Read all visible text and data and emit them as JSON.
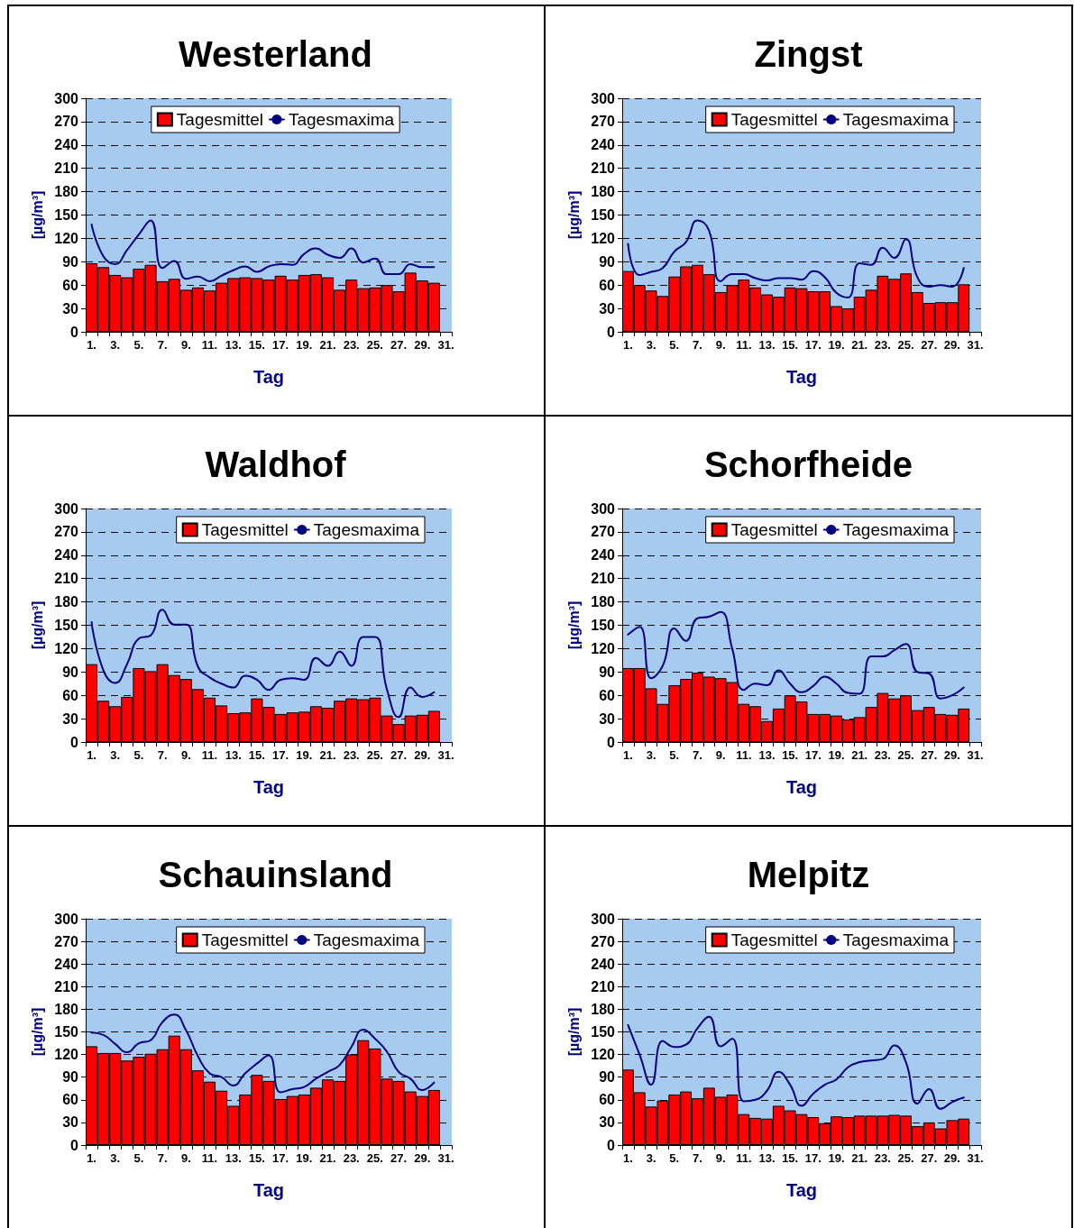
{
  "chart_data": [
    {
      "type": "bar",
      "title": "Westerland",
      "xlabel": "Tag",
      "ylabel": "[µg/m³]",
      "legend": "top",
      "grid": "y",
      "line_style": "solid",
      "marker": "none",
      "ylim": [
        0,
        300
      ],
      "yticks": [
        0,
        30,
        60,
        90,
        120,
        150,
        180,
        210,
        240,
        270,
        300
      ],
      "categories": [
        "1.",
        null,
        "3.",
        null,
        "5.",
        null,
        "7.",
        null,
        "9.",
        null,
        "11.",
        null,
        "13.",
        null,
        "15.",
        null,
        "17.",
        null,
        "19.",
        null,
        "21.",
        null,
        "23.",
        null,
        "25.",
        null,
        "27.",
        null,
        "29.",
        null,
        "31."
      ],
      "series": [
        {
          "name": "Tagesmittel",
          "color": "#ff0000",
          "values": [
            88,
            83,
            73,
            70,
            81,
            86,
            65,
            68,
            54,
            57,
            53,
            63,
            69,
            70,
            69,
            67,
            72,
            67,
            73,
            74,
            70,
            54,
            67,
            56,
            57,
            60,
            52,
            76,
            66,
            63,
            null
          ]
        },
        {
          "name": "Tagesmaxima",
          "type": "line",
          "color": "#000080",
          "values": [
            138,
            97,
            87,
            105,
            125,
            143,
            82,
            91,
            68,
            71,
            65,
            72,
            79,
            84,
            77,
            84,
            87,
            86,
            100,
            107,
            99,
            95,
            107,
            89,
            94,
            74,
            74,
            87,
            83,
            83,
            null
          ]
        }
      ]
    },
    {
      "type": "bar",
      "title": "Zingst",
      "xlabel": "Tag",
      "ylabel": "[µg/m³]",
      "legend": "top right",
      "grid": "y",
      "line_style": "solid",
      "marker": "none",
      "ylim": [
        0,
        300
      ],
      "yticks": [
        0,
        30,
        60,
        90,
        120,
        150,
        180,
        210,
        240,
        270,
        300
      ],
      "categories": [
        "1.",
        null,
        "3.",
        null,
        "5.",
        null,
        "7.",
        null,
        "9.",
        null,
        "11.",
        null,
        "13.",
        null,
        "15.",
        null,
        "17.",
        null,
        "19.",
        null,
        "21.",
        null,
        "23.",
        null,
        "25.",
        null,
        "27.",
        null,
        "29.",
        null,
        "31."
      ],
      "series": [
        {
          "name": "Tagesmittel",
          "color": "#ff0000",
          "values": [
            78,
            60,
            53,
            46,
            71,
            84,
            86,
            74,
            51,
            60,
            67,
            57,
            48,
            45,
            57,
            56,
            52,
            52,
            33,
            30,
            45,
            54,
            72,
            68,
            75,
            51,
            37,
            38,
            38,
            61,
            null
          ]
        },
        {
          "name": "Tagesmaxima",
          "type": "line",
          "color": "#000080",
          "values": [
            113,
            73,
            77,
            82,
            103,
            115,
            143,
            130,
            65,
            74,
            74,
            69,
            66,
            69,
            69,
            67,
            78,
            70,
            50,
            44,
            88,
            86,
            108,
            95,
            119,
            70,
            58,
            60,
            58,
            82,
            null
          ]
        }
      ]
    },
    {
      "type": "bar",
      "title": "Waldhof",
      "xlabel": "Tag",
      "ylabel": "[µg/m³]",
      "legend": "top right",
      "grid": "y",
      "line_style": "solid",
      "marker": "none",
      "ylim": [
        0,
        300
      ],
      "yticks": [
        0,
        30,
        60,
        90,
        120,
        150,
        180,
        210,
        240,
        270,
        300
      ],
      "categories": [
        "1.",
        null,
        "3.",
        null,
        "5.",
        null,
        "7.",
        null,
        "9.",
        null,
        "11.",
        null,
        "13.",
        null,
        "15.",
        null,
        "17.",
        null,
        "19.",
        null,
        "21.",
        null,
        "23.",
        null,
        "25.",
        null,
        "27.",
        null,
        "29.",
        null,
        "31."
      ],
      "series": [
        {
          "name": "Tagesmittel",
          "color": "#ff0000",
          "values": [
            100,
            53,
            46,
            58,
            95,
            91,
            100,
            86,
            81,
            68,
            57,
            47,
            37,
            38,
            56,
            45,
            36,
            38,
            39,
            46,
            44,
            53,
            56,
            55,
            57,
            34,
            23,
            34,
            35,
            40,
            null
          ]
        },
        {
          "name": "Tagesmaxima",
          "type": "line",
          "color": "#000080",
          "values": [
            154,
            92,
            76,
            100,
            133,
            137,
            170,
            151,
            151,
            97,
            83,
            75,
            70,
            85,
            80,
            67,
            80,
            82,
            80,
            108,
            98,
            116,
            98,
            135,
            135,
            68,
            32,
            70,
            58,
            64,
            null
          ]
        }
      ]
    },
    {
      "type": "bar",
      "title": "Schorfheide",
      "xlabel": "Tag",
      "ylabel": "[µg/m³]",
      "legend": "top right",
      "grid": "y",
      "line_style": "solid",
      "marker": "none",
      "ylim": [
        0,
        300
      ],
      "yticks": [
        0,
        30,
        60,
        90,
        120,
        150,
        180,
        210,
        240,
        270,
        300
      ],
      "categories": [
        "1.",
        null,
        "3.",
        null,
        "5.",
        null,
        "7.",
        null,
        "9.",
        null,
        "11.",
        null,
        "13.",
        null,
        "15.",
        null,
        "17.",
        null,
        "19.",
        null,
        "21.",
        null,
        "23.",
        null,
        "25.",
        null,
        "27.",
        null,
        "29.",
        null,
        "31."
      ],
      "series": [
        {
          "name": "Tagesmittel",
          "color": "#ff0000",
          "values": [
            95,
            95,
            69,
            49,
            73,
            81,
            89,
            84,
            82,
            77,
            49,
            46,
            27,
            43,
            60,
            52,
            36,
            36,
            34,
            29,
            32,
            45,
            63,
            56,
            60,
            41,
            45,
            36,
            35,
            43,
            null
          ]
        },
        {
          "name": "Tagesmaxima",
          "type": "line",
          "color": "#000080",
          "values": [
            138,
            148,
            82,
            98,
            146,
            130,
            159,
            161,
            167,
            120,
            67,
            75,
            73,
            92,
            75,
            64,
            72,
            84,
            75,
            63,
            62,
            110,
            110,
            118,
            126,
            90,
            88,
            56,
            60,
            70,
            null
          ]
        }
      ]
    },
    {
      "type": "bar",
      "title": "Schauinsland",
      "xlabel": "Tag",
      "ylabel": "[µg/m³]",
      "legend": "top right",
      "grid": "y",
      "line_style": "solid",
      "marker": "none",
      "ylim": [
        0,
        300
      ],
      "yticks": [
        0,
        30,
        60,
        90,
        120,
        150,
        180,
        210,
        240,
        270,
        300
      ],
      "categories": [
        "1.",
        null,
        "3.",
        null,
        "5.",
        null,
        "7.",
        null,
        "9.",
        null,
        "11.",
        null,
        "13.",
        null,
        "15.",
        null,
        "17.",
        null,
        "19.",
        null,
        "21.",
        null,
        "23.",
        null,
        "25.",
        null,
        "27.",
        null,
        "29.",
        null,
        "31."
      ],
      "series": [
        {
          "name": "Tagesmittel",
          "color": "#ff0000",
          "values": [
            131,
            122,
            122,
            112,
            117,
            121,
            127,
            145,
            127,
            99,
            84,
            72,
            52,
            67,
            93,
            85,
            61,
            65,
            67,
            76,
            87,
            85,
            120,
            139,
            128,
            88,
            85,
            71,
            65,
            73,
            null
          ]
        },
        {
          "name": "Tagesmaxima",
          "type": "line",
          "color": "#000080",
          "values": [
            149,
            146,
            134,
            123,
            135,
            139,
            163,
            173,
            152,
            118,
            95,
            90,
            79,
            95,
            108,
            119,
            70,
            74,
            77,
            88,
            97,
            106,
            130,
            153,
            141,
            124,
            97,
            88,
            73,
            83,
            null
          ]
        }
      ]
    },
    {
      "type": "bar",
      "title": "Melpitz",
      "xlabel": "Tag",
      "ylabel": "[µg/m³]",
      "legend": "top right",
      "grid": "y",
      "line_style": "solid",
      "marker": "none",
      "ylim": [
        0,
        300
      ],
      "yticks": [
        0,
        30,
        60,
        90,
        120,
        150,
        180,
        210,
        240,
        270,
        300
      ],
      "categories": [
        "1.",
        null,
        "3.",
        null,
        "5.",
        null,
        "7.",
        null,
        "9.",
        null,
        "11.",
        null,
        "13.",
        null,
        "15.",
        null,
        "17.",
        null,
        "19.",
        null,
        "21.",
        null,
        "23.",
        null,
        "25.",
        null,
        "27.",
        null,
        "29.",
        null,
        "31."
      ],
      "series": [
        {
          "name": "Tagesmittel",
          "color": "#ff0000",
          "values": [
            100,
            70,
            51,
            59,
            67,
            71,
            62,
            76,
            64,
            67,
            41,
            36,
            35,
            52,
            46,
            41,
            37,
            29,
            38,
            37,
            39,
            39,
            39,
            40,
            39,
            25,
            30,
            22,
            33,
            35,
            null
          ]
        },
        {
          "name": "Tagesmaxima",
          "type": "line",
          "color": "#000080",
          "values": [
            159,
            120,
            80,
            138,
            130,
            133,
            155,
            170,
            131,
            141,
            58,
            60,
            72,
            97,
            80,
            52,
            68,
            80,
            87,
            103,
            110,
            112,
            114,
            132,
            110,
            55,
            74,
            48,
            57,
            63,
            null
          ]
        }
      ]
    }
  ]
}
